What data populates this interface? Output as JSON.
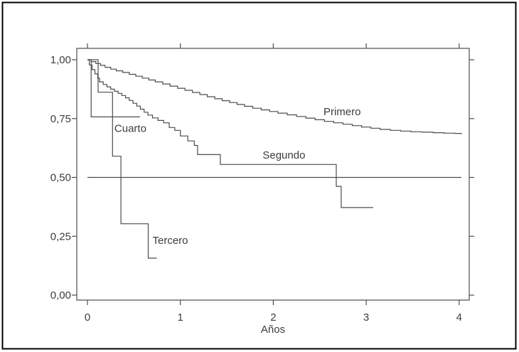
{
  "figure": {
    "background": "#ffffff",
    "border_color": "#000000",
    "line_color": "#4c4c4c",
    "text_color": "#3c3c3c"
  },
  "chart_data": {
    "type": "line",
    "subtype": "kaplan-meier-step-survival",
    "title": "",
    "xlabel": "Años",
    "ylabel": "",
    "xlim": [
      -0.12,
      4.1
    ],
    "ylim": [
      -0.02,
      1.05
    ],
    "grid": false,
    "legend": "inline-labels",
    "x_ticks": [
      {
        "value": 0,
        "label": "0"
      },
      {
        "value": 1,
        "label": "1"
      },
      {
        "value": 2,
        "label": "2"
      },
      {
        "value": 3,
        "label": "3"
      },
      {
        "value": 4,
        "label": "4"
      }
    ],
    "y_ticks": [
      {
        "value": 1.0,
        "label": "1,00"
      },
      {
        "value": 0.75,
        "label": "0,75"
      },
      {
        "value": 0.5,
        "label": "0,50"
      },
      {
        "value": 0.25,
        "label": "0,25"
      },
      {
        "value": 0.0,
        "label": "0,00"
      }
    ],
    "reference_line": {
      "v": 0.5,
      "x_from": 0,
      "x_to": 4.025
    },
    "series": [
      {
        "name": "Primero",
        "end_x": 4.03,
        "points": [
          [
            0,
            1.0
          ],
          [
            0.04,
            0.992
          ],
          [
            0.09,
            0.984
          ],
          [
            0.14,
            0.976
          ],
          [
            0.19,
            0.968
          ],
          [
            0.25,
            0.96
          ],
          [
            0.31,
            0.953
          ],
          [
            0.38,
            0.946
          ],
          [
            0.45,
            0.938
          ],
          [
            0.52,
            0.93
          ],
          [
            0.59,
            0.922
          ],
          [
            0.66,
            0.914
          ],
          [
            0.73,
            0.906
          ],
          [
            0.81,
            0.897
          ],
          [
            0.89,
            0.888
          ],
          [
            0.97,
            0.879
          ],
          [
            1.05,
            0.87
          ],
          [
            1.13,
            0.861
          ],
          [
            1.21,
            0.852
          ],
          [
            1.29,
            0.843
          ],
          [
            1.37,
            0.834
          ],
          [
            1.45,
            0.826
          ],
          [
            1.53,
            0.818
          ],
          [
            1.61,
            0.81
          ],
          [
            1.69,
            0.802
          ],
          [
            1.78,
            0.794
          ],
          [
            1.87,
            0.787
          ],
          [
            1.96,
            0.78
          ],
          [
            2.05,
            0.773
          ],
          [
            2.15,
            0.766
          ],
          [
            2.25,
            0.759
          ],
          [
            2.35,
            0.752
          ],
          [
            2.45,
            0.745
          ],
          [
            2.55,
            0.738
          ],
          [
            2.65,
            0.732
          ],
          [
            2.75,
            0.726
          ],
          [
            2.85,
            0.72
          ],
          [
            2.95,
            0.714
          ],
          [
            3.05,
            0.709
          ],
          [
            3.15,
            0.704
          ],
          [
            3.26,
            0.7
          ],
          [
            3.37,
            0.697
          ],
          [
            3.48,
            0.694
          ],
          [
            3.6,
            0.692
          ],
          [
            3.72,
            0.69
          ],
          [
            3.84,
            0.688
          ],
          [
            3.96,
            0.687
          ],
          [
            4.02,
            0.686
          ]
        ]
      },
      {
        "name": "Segundo",
        "end_x": 3.075,
        "points": [
          [
            0,
            1.0
          ],
          [
            0.02,
            0.978
          ],
          [
            0.05,
            0.958
          ],
          [
            0.08,
            0.94
          ],
          [
            0.11,
            0.922
          ],
          [
            0.13,
            0.906
          ],
          [
            0.17,
            0.895
          ],
          [
            0.21,
            0.885
          ],
          [
            0.25,
            0.875
          ],
          [
            0.29,
            0.866
          ],
          [
            0.33,
            0.857
          ],
          [
            0.37,
            0.848
          ],
          [
            0.41,
            0.838
          ],
          [
            0.45,
            0.827
          ],
          [
            0.49,
            0.815
          ],
          [
            0.53,
            0.803
          ],
          [
            0.57,
            0.79
          ],
          [
            0.61,
            0.777
          ],
          [
            0.65,
            0.765
          ],
          [
            0.7,
            0.753
          ],
          [
            0.76,
            0.742
          ],
          [
            0.82,
            0.732
          ],
          [
            0.88,
            0.712
          ],
          [
            0.94,
            0.7
          ],
          [
            1.0,
            0.676
          ],
          [
            1.08,
            0.655
          ],
          [
            1.15,
            0.636
          ],
          [
            1.185,
            0.597
          ],
          [
            1.43,
            0.555
          ],
          [
            2.678,
            0.462
          ],
          [
            2.731,
            0.372
          ]
        ]
      },
      {
        "name": "Tercero",
        "end_x": 0.746,
        "points": [
          [
            0,
            1.0
          ],
          [
            0.115,
            0.862
          ],
          [
            0.27,
            0.59
          ],
          [
            0.36,
            0.303
          ],
          [
            0.654,
            0.157
          ]
        ]
      },
      {
        "name": "Cuarto",
        "end_x": 0.565,
        "points": [
          [
            0,
            1.0
          ],
          [
            0.04,
            0.757
          ]
        ]
      }
    ],
    "annotations": [
      {
        "text": "Primero",
        "x": 2.54,
        "v": 0.764
      },
      {
        "text": "Segundo",
        "x": 1.885,
        "v": 0.58
      },
      {
        "text": "Cuarto",
        "x": 0.29,
        "v": 0.693
      },
      {
        "text": "Tercero",
        "x": 0.7,
        "v": 0.218
      }
    ]
  }
}
